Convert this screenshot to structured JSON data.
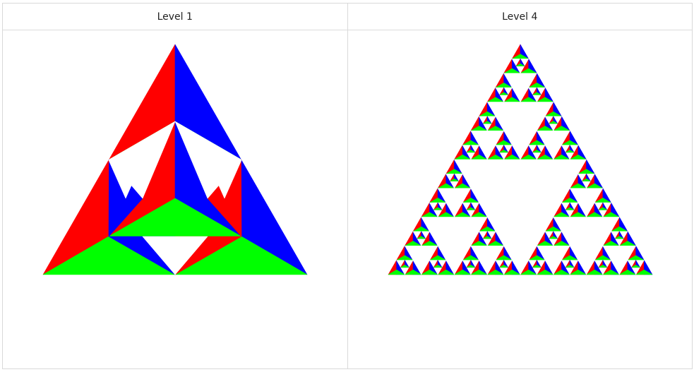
{
  "panels": [
    {
      "title": "Level 1",
      "level": 1
    },
    {
      "title": "Level 4",
      "level": 4
    }
  ],
  "colors": {
    "red": "#ff0000",
    "green": "#00ff00",
    "blue": "#0000ff",
    "hole": "#ffffff"
  }
}
